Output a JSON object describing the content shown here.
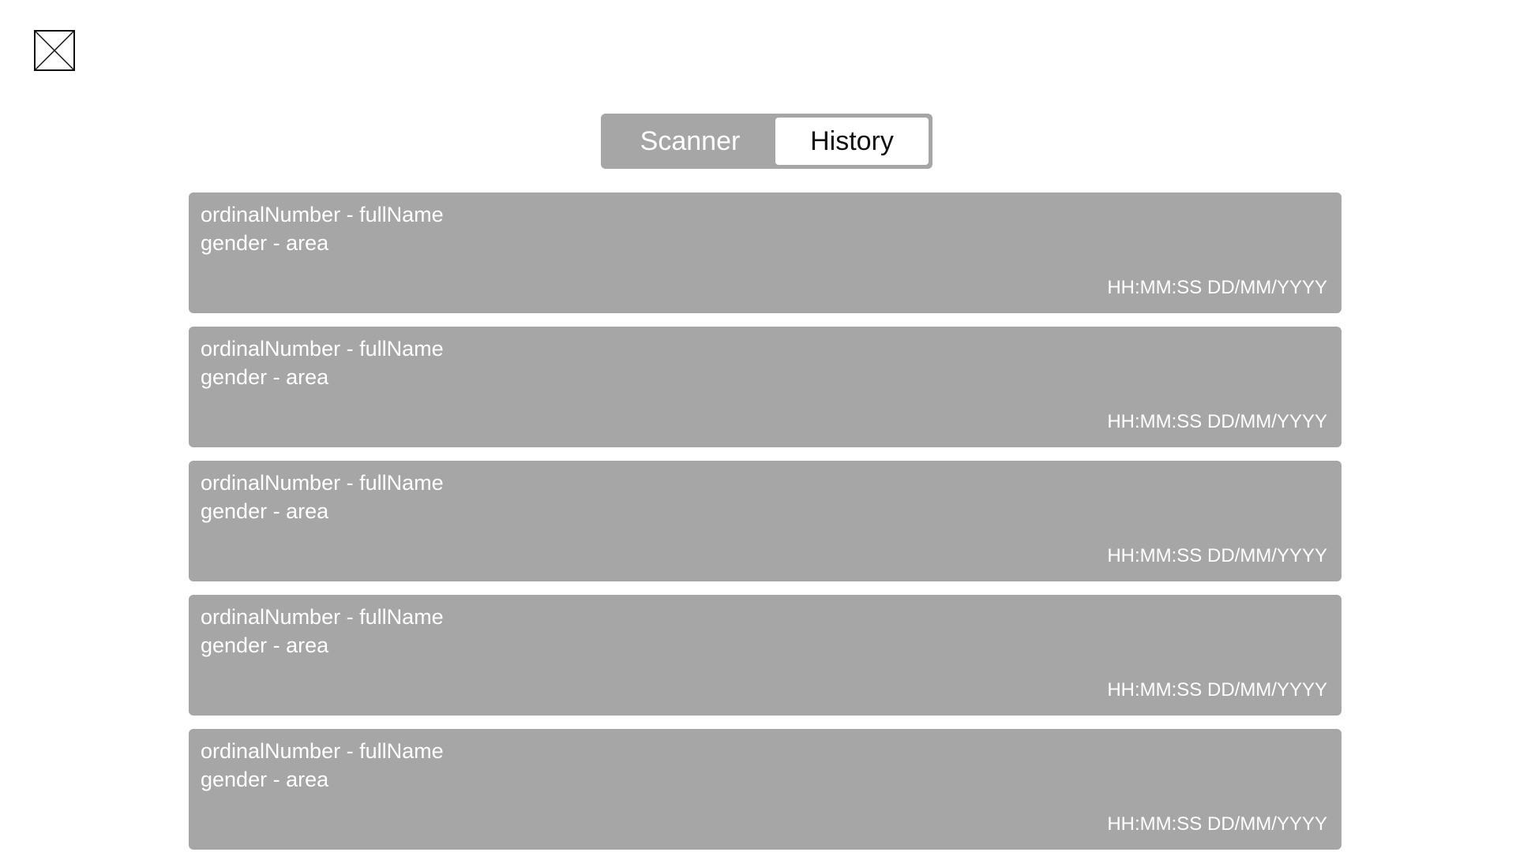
{
  "tabs": [
    {
      "label": "Scanner",
      "active": false
    },
    {
      "label": "History",
      "active": true
    }
  ],
  "history": [
    {
      "title": "ordinalNumber - fullName",
      "subtitle": "gender - area",
      "timestamp": "HH:MM:SS DD/MM/YYYY"
    },
    {
      "title": "ordinalNumber - fullName",
      "subtitle": "gender - area",
      "timestamp": "HH:MM:SS DD/MM/YYYY"
    },
    {
      "title": "ordinalNumber - fullName",
      "subtitle": "gender - area",
      "timestamp": "HH:MM:SS DD/MM/YYYY"
    },
    {
      "title": "ordinalNumber - fullName",
      "subtitle": "gender - area",
      "timestamp": "HH:MM:SS DD/MM/YYYY"
    },
    {
      "title": "ordinalNumber - fullName",
      "subtitle": "gender - area",
      "timestamp": "HH:MM:SS DD/MM/YYYY"
    }
  ],
  "colors": {
    "card_bg": "#a6a6a6",
    "active_tab_bg": "#ffffff",
    "text_light": "#ffffff",
    "text_dark": "#111111"
  },
  "icons": {
    "close": "close-icon"
  }
}
